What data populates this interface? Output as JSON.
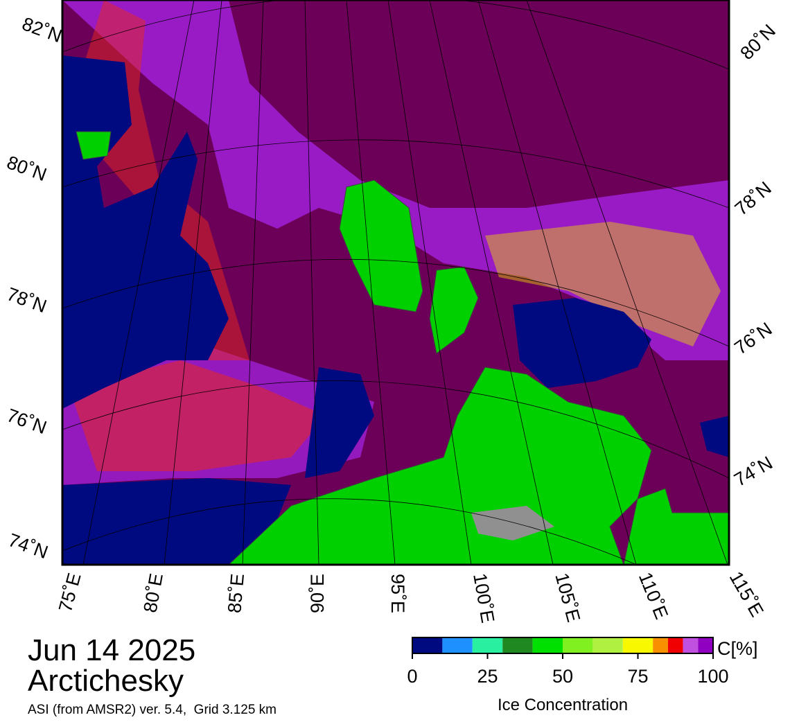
{
  "map": {
    "date": "Jun 14 2025",
    "region": "Arctichesky",
    "source": "ASI (from AMSR2) ver. 5.4,  Grid 3.125 km",
    "lat_labels_left": [
      "82˚N",
      "80˚N",
      "78˚N",
      "76˚N",
      "74˚N"
    ],
    "lat_labels_right": [
      "80˚N",
      "78˚N",
      "76˚N",
      "74˚N"
    ],
    "lon_labels": [
      "75˚E",
      "80˚E",
      "85˚E",
      "90˚E",
      "95˚E",
      "100˚E",
      "105˚E",
      "110˚E",
      "115˚E"
    ]
  },
  "colorbar": {
    "label": "Ice Concentration",
    "unit": "C[%]",
    "range": [
      0,
      100
    ],
    "bins": [
      0,
      10,
      20,
      30,
      40,
      50,
      60,
      70,
      80,
      85,
      90,
      95,
      100
    ],
    "colors": [
      "#000a80",
      "#1e90ff",
      "#28f0a0",
      "#208820",
      "#00e000",
      "#80f020",
      "#b0f040",
      "#f8f800",
      "#f89000",
      "#f00000",
      "#c050e0",
      "#9000c0"
    ],
    "ticks": [
      0,
      25,
      50,
      75,
      100
    ]
  }
}
